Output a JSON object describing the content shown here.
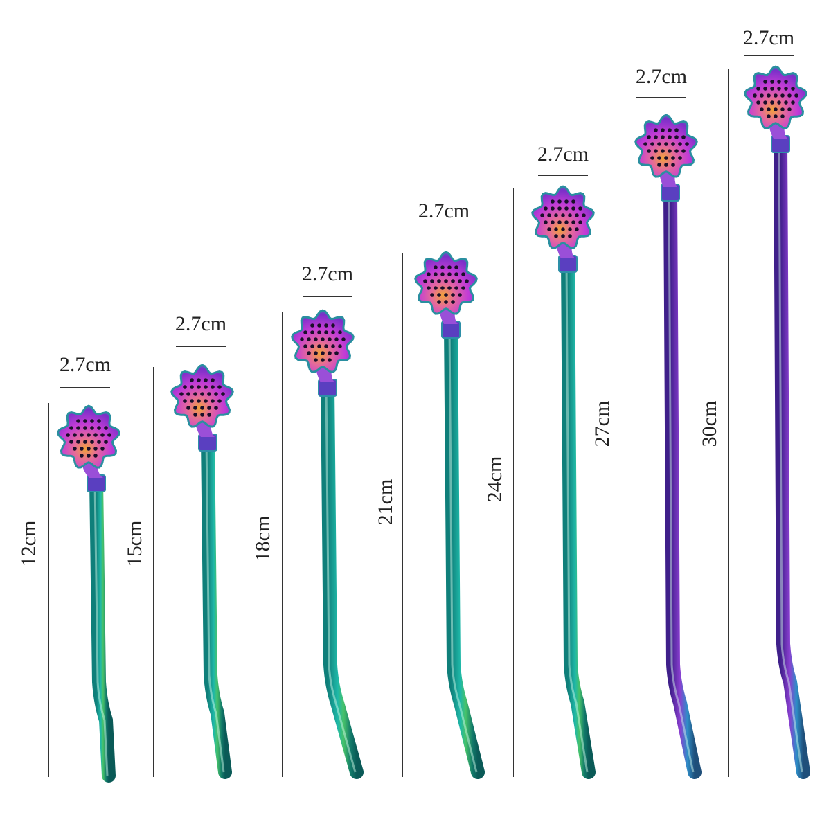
{
  "straws": [
    {
      "length_label": "12cm",
      "width_label": "2.7cm"
    },
    {
      "length_label": "15cm",
      "width_label": "2.7cm"
    },
    {
      "length_label": "18cm",
      "width_label": "2.7cm"
    },
    {
      "length_label": "21cm",
      "width_label": "2.7cm"
    },
    {
      "length_label": "24cm",
      "width_label": "2.7cm"
    },
    {
      "length_label": "27cm",
      "width_label": "2.7cm"
    },
    {
      "length_label": "30cm",
      "width_label": "2.7cm"
    }
  ],
  "colors": {
    "straw_teal": "#1fb8a8",
    "straw_green": "#47c26a",
    "straw_purple": "#8a3fd0",
    "head_magenta": "#c23cd6",
    "head_orange": "#f2a23a",
    "line": "#333333"
  }
}
